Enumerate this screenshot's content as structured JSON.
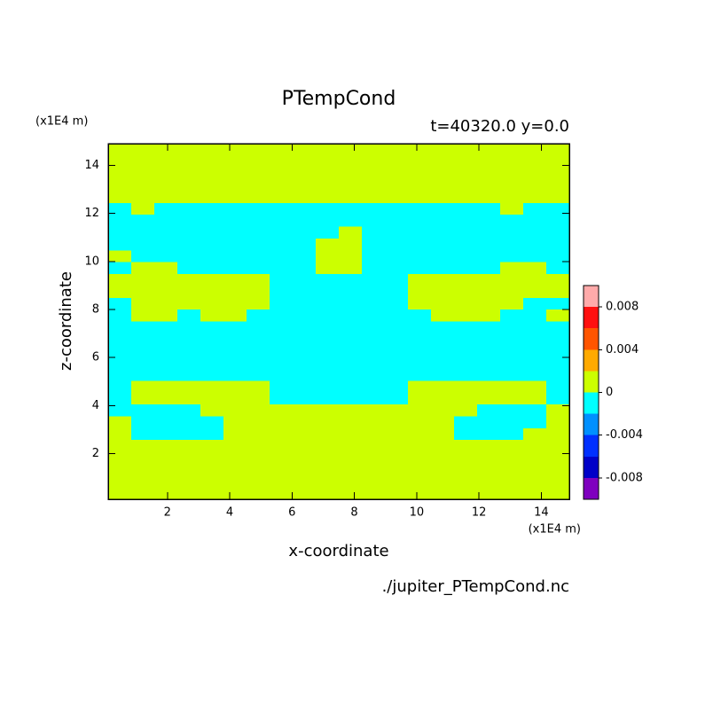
{
  "chart_data": {
    "type": "contour",
    "title": "PTempCond",
    "subtitle": "t=40320.0 y=0.0",
    "x_label": "x-coordinate",
    "y_label": "z-coordinate",
    "x_unit": "(x1E4 m)",
    "y_unit": "(x1E4 m)",
    "footer": "./jupiter_PTempCond.nc",
    "xlim": [
      0.1,
      14.9
    ],
    "ylim": [
      0.1,
      14.9
    ],
    "xticks": [
      2,
      4,
      6,
      8,
      10,
      12,
      14
    ],
    "yticks": [
      2,
      4,
      6,
      8,
      10,
      12,
      14
    ],
    "levels": [
      -0.01,
      -0.008,
      -0.006,
      -0.004,
      -0.002,
      0,
      0.002,
      0.004,
      0.006,
      0.008,
      0.01
    ],
    "colors": [
      "#7f00bf",
      "#0000c8",
      "#0030ff",
      "#0090ff",
      "#00ffff",
      "#ccff00",
      "#ffaa00",
      "#ff5500",
      "#ff1010",
      "#ffaaaa"
    ],
    "colorbar_ticks": [
      -0.008,
      -0.004,
      0,
      0.004,
      0.008
    ],
    "z": [
      [
        0.001,
        0.001,
        0.001,
        0.001,
        0.001,
        0.001,
        0.001,
        0.001,
        0.001,
        0.001,
        0.001,
        0.001,
        0.001,
        0.001,
        0.001,
        0.001,
        0.001,
        0.001,
        0.001,
        0.001
      ],
      [
        0.001,
        0.001,
        0.001,
        0.001,
        0.001,
        0.001,
        0.001,
        0.001,
        0.001,
        0.001,
        0.001,
        0.001,
        0.001,
        0.001,
        0.001,
        0.001,
        0.001,
        0.001,
        0.001,
        0.001
      ],
      [
        0.001,
        0.001,
        0.001,
        0.001,
        0.001,
        0.001,
        0.001,
        0.001,
        0.001,
        0.001,
        0.001,
        0.001,
        0.001,
        0.001,
        0.001,
        0.001,
        0.001,
        0.001,
        0.001,
        0.001
      ],
      [
        0.001,
        0.001,
        0.001,
        0.001,
        0.001,
        0.001,
        0.001,
        0.001,
        0.001,
        0.001,
        0.001,
        0.001,
        0.001,
        0.001,
        0.001,
        0.001,
        0.001,
        0.001,
        0.001,
        0.001
      ],
      [
        0.001,
        0.001,
        0.001,
        0.001,
        0.001,
        0.001,
        0.001,
        0.001,
        0.001,
        0.001,
        0.001,
        0.001,
        0.001,
        0.001,
        0.001,
        0.001,
        0.001,
        0.001,
        0.001,
        0.001
      ],
      [
        -0.001,
        0.001,
        -0.001,
        -0.001,
        -0.001,
        -0.001,
        -0.001,
        -0.001,
        -0.001,
        -0.001,
        -0.001,
        -0.001,
        -0.001,
        -0.001,
        -0.001,
        -0.001,
        -0.001,
        0.001,
        -0.001,
        -0.001
      ],
      [
        -0.001,
        -0.001,
        -0.001,
        -0.001,
        -0.001,
        -0.001,
        -0.001,
        -0.001,
        -0.001,
        -0.001,
        -0.001,
        -0.001,
        -0.001,
        -0.001,
        -0.001,
        -0.001,
        -0.001,
        -0.001,
        -0.001,
        -0.001
      ],
      [
        -0.001,
        -0.001,
        -0.001,
        -0.001,
        -0.001,
        -0.001,
        -0.001,
        -0.001,
        -0.001,
        -0.001,
        0.001,
        -0.001,
        -0.001,
        -0.001,
        -0.001,
        -0.001,
        -0.001,
        -0.001,
        -0.001,
        -0.001
      ],
      [
        -0.001,
        -0.001,
        -0.001,
        -0.001,
        -0.001,
        -0.001,
        -0.001,
        -0.001,
        -0.001,
        0.001,
        0.001,
        -0.001,
        -0.001,
        -0.001,
        -0.001,
        -0.001,
        -0.001,
        -0.001,
        -0.001,
        -0.001
      ],
      [
        0.001,
        -0.001,
        -0.001,
        -0.001,
        -0.001,
        -0.001,
        -0.001,
        -0.001,
        -0.001,
        0.001,
        0.001,
        -0.001,
        -0.001,
        -0.001,
        -0.001,
        -0.001,
        -0.001,
        -0.001,
        -0.001,
        -0.001
      ],
      [
        -0.001,
        0.001,
        0.001,
        -0.001,
        -0.001,
        -0.001,
        -0.001,
        -0.001,
        -0.001,
        0.001,
        0.001,
        -0.001,
        -0.001,
        -0.001,
        -0.001,
        -0.001,
        -0.001,
        0.001,
        0.001,
        -0.001
      ],
      [
        0.001,
        0.001,
        0.001,
        0.001,
        0.001,
        0.001,
        0.001,
        -0.001,
        -0.001,
        -0.001,
        -0.001,
        -0.001,
        -0.001,
        0.001,
        0.001,
        0.001,
        0.001,
        0.001,
        0.001,
        0.001
      ],
      [
        0.001,
        0.001,
        0.001,
        0.001,
        0.001,
        0.001,
        0.001,
        -0.001,
        -0.001,
        -0.001,
        -0.001,
        -0.001,
        -0.001,
        0.001,
        0.001,
        0.001,
        0.001,
        0.001,
        0.001,
        0.001
      ],
      [
        -0.001,
        0.001,
        0.001,
        0.001,
        0.001,
        0.001,
        0.001,
        -0.001,
        -0.001,
        -0.001,
        -0.001,
        -0.001,
        -0.001,
        0.001,
        0.001,
        0.001,
        0.001,
        0.001,
        -0.001,
        -0.001
      ],
      [
        -0.001,
        0.001,
        0.001,
        -0.001,
        0.001,
        0.001,
        -0.001,
        -0.001,
        -0.001,
        -0.001,
        -0.001,
        -0.001,
        -0.001,
        -0.001,
        0.001,
        0.001,
        0.001,
        -0.001,
        -0.001,
        0.001
      ],
      [
        -0.001,
        -0.001,
        -0.001,
        -0.001,
        -0.001,
        -0.001,
        -0.001,
        -0.001,
        -0.001,
        -0.001,
        -0.001,
        -0.001,
        -0.001,
        -0.001,
        -0.001,
        -0.001,
        -0.001,
        -0.001,
        -0.001,
        -0.001
      ],
      [
        -0.001,
        -0.001,
        -0.001,
        -0.001,
        -0.001,
        -0.001,
        -0.001,
        -0.001,
        -0.001,
        -0.001,
        -0.001,
        -0.001,
        -0.001,
        -0.001,
        -0.001,
        -0.001,
        -0.001,
        -0.001,
        -0.001,
        -0.001
      ],
      [
        -0.001,
        -0.001,
        -0.001,
        -0.001,
        -0.001,
        -0.001,
        -0.001,
        -0.001,
        -0.001,
        -0.001,
        -0.001,
        -0.001,
        -0.001,
        -0.001,
        -0.001,
        -0.001,
        -0.001,
        -0.001,
        -0.001,
        -0.001
      ],
      [
        -0.001,
        -0.001,
        -0.001,
        -0.001,
        -0.001,
        -0.001,
        -0.001,
        -0.001,
        -0.001,
        -0.001,
        -0.001,
        -0.001,
        -0.001,
        -0.001,
        -0.001,
        -0.001,
        -0.001,
        -0.001,
        -0.001,
        -0.001
      ],
      [
        -0.001,
        -0.001,
        -0.001,
        -0.001,
        -0.001,
        -0.001,
        -0.001,
        -0.001,
        -0.001,
        -0.001,
        -0.001,
        -0.001,
        -0.001,
        -0.001,
        -0.001,
        -0.001,
        -0.001,
        -0.001,
        -0.001,
        -0.001
      ],
      [
        -0.001,
        0.001,
        0.001,
        0.001,
        0.001,
        0.001,
        0.001,
        -0.001,
        -0.001,
        -0.001,
        -0.001,
        -0.001,
        -0.001,
        0.001,
        0.001,
        0.001,
        0.001,
        0.001,
        0.001,
        -0.001
      ],
      [
        -0.001,
        0.001,
        0.001,
        0.001,
        0.001,
        0.001,
        0.001,
        -0.001,
        -0.001,
        -0.001,
        -0.001,
        -0.001,
        -0.001,
        0.001,
        0.001,
        0.001,
        0.001,
        0.001,
        0.001,
        -0.001
      ],
      [
        -0.001,
        -0.001,
        -0.001,
        -0.001,
        0.001,
        0.001,
        0.001,
        0.001,
        0.001,
        0.001,
        0.001,
        0.001,
        0.001,
        0.001,
        0.001,
        0.001,
        -0.001,
        -0.001,
        -0.001,
        0.001
      ],
      [
        0.001,
        -0.001,
        -0.001,
        -0.001,
        -0.001,
        0.001,
        0.001,
        0.001,
        0.001,
        0.001,
        0.001,
        0.001,
        0.001,
        0.001,
        0.001,
        -0.001,
        -0.001,
        -0.001,
        -0.001,
        0.001
      ],
      [
        0.001,
        -0.001,
        -0.001,
        -0.001,
        -0.001,
        0.001,
        0.001,
        0.001,
        0.001,
        0.001,
        0.001,
        0.001,
        0.001,
        0.001,
        0.001,
        -0.001,
        -0.001,
        -0.001,
        0.001,
        0.001
      ],
      [
        0.001,
        0.001,
        0.001,
        0.001,
        0.001,
        0.001,
        0.001,
        0.001,
        0.001,
        0.001,
        0.001,
        0.001,
        0.001,
        0.001,
        0.001,
        0.001,
        0.001,
        0.001,
        0.001,
        0.001
      ],
      [
        0.001,
        0.001,
        0.001,
        0.001,
        0.001,
        0.001,
        0.001,
        0.001,
        0.001,
        0.001,
        0.001,
        0.001,
        0.001,
        0.001,
        0.001,
        0.001,
        0.001,
        0.001,
        0.001,
        0.001
      ],
      [
        0.001,
        0.001,
        0.001,
        0.001,
        0.001,
        0.001,
        0.001,
        0.001,
        0.001,
        0.001,
        0.001,
        0.001,
        0.001,
        0.001,
        0.001,
        0.001,
        0.001,
        0.001,
        0.001,
        0.001
      ],
      [
        0.001,
        0.001,
        0.001,
        0.001,
        0.001,
        0.001,
        0.001,
        0.001,
        0.001,
        0.001,
        0.001,
        0.001,
        0.001,
        0.001,
        0.001,
        0.001,
        0.001,
        0.001,
        0.001,
        0.001
      ],
      [
        0.001,
        0.001,
        0.001,
        0.001,
        0.001,
        0.001,
        0.001,
        0.001,
        0.001,
        0.001,
        0.001,
        0.001,
        0.001,
        0.001,
        0.001,
        0.001,
        0.001,
        0.001,
        0.001,
        0.001
      ]
    ]
  }
}
